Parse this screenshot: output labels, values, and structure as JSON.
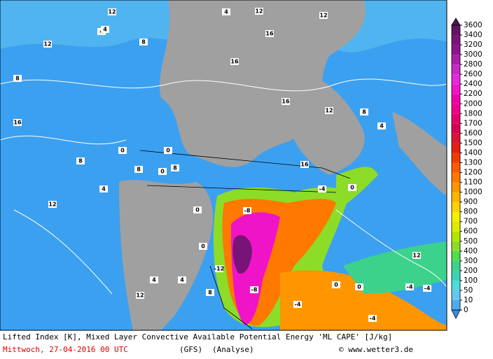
{
  "map": {
    "labels": [
      "12",
      "4",
      "12",
      "16",
      "12",
      "4",
      "8",
      "12",
      "16",
      "8",
      "4",
      "0",
      "0",
      "12",
      "8",
      "4",
      "16",
      "12",
      "16",
      "8",
      "0",
      "0",
      "0",
      "-8",
      "-4",
      "-12",
      "-8",
      "-4",
      "-4",
      "0",
      "4",
      "8",
      "12",
      "16",
      "8",
      "4",
      "0",
      "-4",
      "-4",
      "0",
      "12",
      "4",
      "8"
    ]
  },
  "colorbar": {
    "levels": [
      0,
      10,
      50,
      100,
      200,
      300,
      400,
      500,
      600,
      700,
      800,
      900,
      1000,
      1100,
      1200,
      1300,
      1400,
      1500,
      1600,
      1700,
      1800,
      2000,
      2200,
      2400,
      2600,
      2800,
      3000,
      3200,
      3400,
      3600
    ],
    "under_color": "#3c8cf0",
    "over_color": "#501450",
    "colors": [
      "#50aaf0",
      "#64c8f0",
      "#50dcdc",
      "#3cd2b4",
      "#3cd28c",
      "#50dc50",
      "#8cdc28",
      "#b4e600",
      "#dceb00",
      "#f5f000",
      "#ffd200",
      "#ffb400",
      "#ff9600",
      "#ff7800",
      "#ff5a00",
      "#f03c00",
      "#e61e14",
      "#dc1432",
      "#dc0050",
      "#e6006e",
      "#f0008c",
      "#f000aa",
      "#f014c8",
      "#e628dc",
      "#c828c8",
      "#aa1eaa",
      "#8c148c",
      "#781478",
      "#641464"
    ]
  },
  "footer": {
    "line1": "Lifted Index [K], Mixed Layer Convective Available Potential Energy 'ML CAPE' [J/kg]",
    "date": "Mittwoch, 27-04-2016  00 UTC",
    "model": "(GFS)",
    "run": "(Analyse)",
    "credit": "© www.wetter3.de"
  }
}
